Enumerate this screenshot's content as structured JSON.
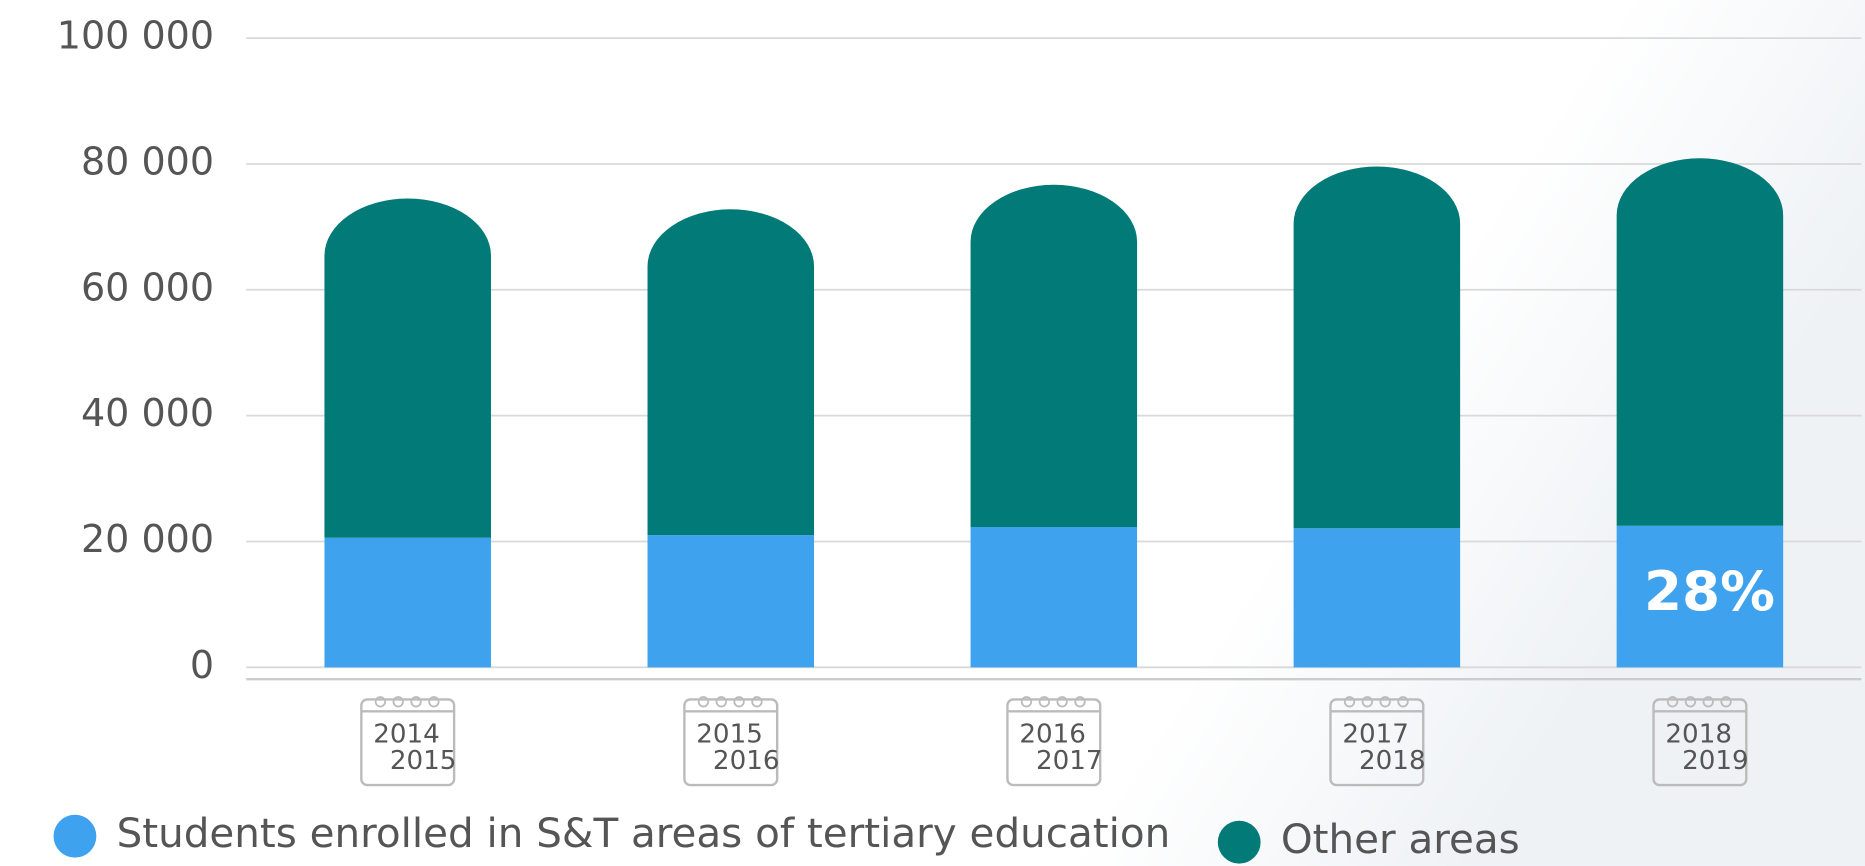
{
  "chart_data": {
    "type": "stacked-bar",
    "categories": [
      [
        "2014",
        "2015"
      ],
      [
        "2015",
        "2016"
      ],
      [
        "2016",
        "2017"
      ],
      [
        "2017",
        "2018"
      ],
      [
        "2018",
        "2019"
      ]
    ],
    "series": [
      {
        "name": "Students enrolled in S&T areas of tertiary education",
        "color": "#3fa2ee",
        "values": [
          20600,
          21000,
          22300,
          22100,
          22500
        ]
      },
      {
        "name": "Other areas",
        "color": "#017a78",
        "values": [
          53900,
          51800,
          54400,
          57500,
          58400
        ]
      }
    ],
    "annotations": [
      {
        "text": "28%",
        "category": 4
      }
    ],
    "ylim": [
      0,
      100000
    ],
    "yticks": [
      0,
      {
        "value": 20000,
        "label": "20 000"
      },
      {
        "value": 40000,
        "label": "40 000"
      },
      {
        "value": 60000,
        "label": "60 000"
      },
      {
        "value": 80000,
        "label": "80 000"
      },
      {
        "value": 100000,
        "label": "100 000"
      }
    ],
    "grid": true,
    "legend": "bottom"
  }
}
